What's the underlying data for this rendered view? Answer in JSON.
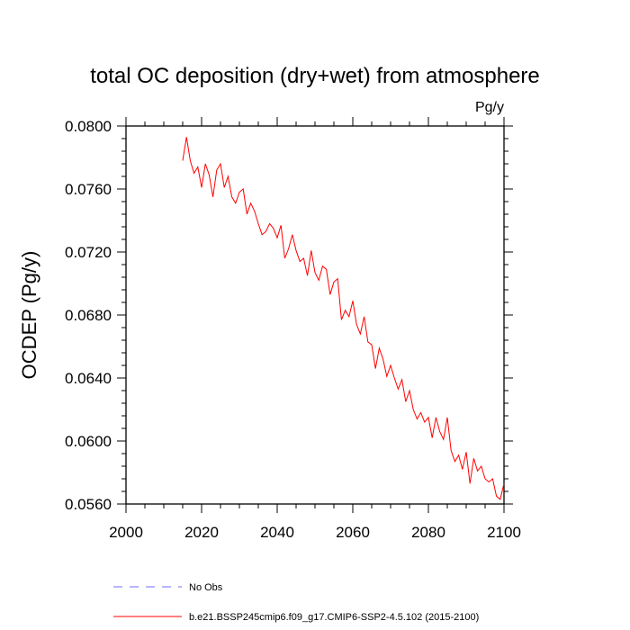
{
  "chart_data": {
    "type": "line",
    "title": "total OC deposition (dry+wet) from atmosphere",
    "units_label": "Pg/y",
    "ylabel": "OCDEP  (Pg/y)",
    "xlabel": "",
    "xlim": [
      2000,
      2100
    ],
    "ylim": [
      0.056,
      0.08
    ],
    "x_ticks": [
      2000,
      2020,
      2040,
      2060,
      2080,
      2100
    ],
    "x_tick_labels": [
      "2000",
      "2020",
      "2040",
      "2060",
      "2080",
      "2100"
    ],
    "y_ticks": [
      0.056,
      0.06,
      0.064,
      0.068,
      0.072,
      0.076,
      0.08
    ],
    "y_tick_labels": [
      "0.0560",
      "0.0600",
      "0.0640",
      "0.0680",
      "0.0720",
      "0.0760",
      "0.0800"
    ],
    "grid": false,
    "legend": [
      {
        "label": "No Obs",
        "color": "#6b6bff",
        "style": "dashed"
      },
      {
        "label": "b.e21.BSSP245cmip6.f09_g17.CMIP6-SSP2-4.5.102 (2015-2100)",
        "color": "#ff0000",
        "style": "solid"
      }
    ],
    "series": [
      {
        "name": "b.e21.BSSP245cmip6.f09_g17.CMIP6-SSP2-4.5.102 (2015-2100)",
        "color": "#ff0000",
        "x": [
          2015,
          2016,
          2017,
          2018,
          2019,
          2020,
          2021,
          2022,
          2023,
          2024,
          2025,
          2026,
          2027,
          2028,
          2029,
          2030,
          2031,
          2032,
          2033,
          2034,
          2035,
          2036,
          2037,
          2038,
          2039,
          2040,
          2041,
          2042,
          2043,
          2044,
          2045,
          2046,
          2047,
          2048,
          2049,
          2050,
          2051,
          2052,
          2053,
          2054,
          2055,
          2056,
          2057,
          2058,
          2059,
          2060,
          2061,
          2062,
          2063,
          2064,
          2065,
          2066,
          2067,
          2068,
          2069,
          2070,
          2071,
          2072,
          2073,
          2074,
          2075,
          2076,
          2077,
          2078,
          2079,
          2080,
          2081,
          2082,
          2083,
          2084,
          2085,
          2086,
          2087,
          2088,
          2089,
          2090,
          2091,
          2092,
          2093,
          2094,
          2095,
          2096,
          2097,
          2098,
          2099,
          2100
        ],
        "values": [
          0.0778,
          0.0793,
          0.0778,
          0.077,
          0.0774,
          0.0761,
          0.0776,
          0.0769,
          0.0755,
          0.0772,
          0.0776,
          0.0761,
          0.0768,
          0.0755,
          0.0751,
          0.0758,
          0.076,
          0.0744,
          0.0751,
          0.0746,
          0.0738,
          0.0731,
          0.0733,
          0.0738,
          0.0735,
          0.0729,
          0.0737,
          0.0716,
          0.0722,
          0.0731,
          0.0721,
          0.0714,
          0.0716,
          0.0705,
          0.0721,
          0.0707,
          0.0702,
          0.0711,
          0.0709,
          0.0693,
          0.0701,
          0.0703,
          0.0677,
          0.0683,
          0.0679,
          0.0689,
          0.0674,
          0.0668,
          0.0679,
          0.0663,
          0.0661,
          0.0646,
          0.0659,
          0.0652,
          0.0641,
          0.0648,
          0.064,
          0.0633,
          0.0639,
          0.0625,
          0.0632,
          0.062,
          0.0614,
          0.0618,
          0.0612,
          0.0615,
          0.0602,
          0.0615,
          0.0606,
          0.0601,
          0.0615,
          0.0594,
          0.0587,
          0.0591,
          0.0582,
          0.0593,
          0.0573,
          0.0589,
          0.0581,
          0.0584,
          0.0576,
          0.0574,
          0.0576,
          0.0565,
          0.0563,
          0.0573
        ]
      }
    ]
  }
}
